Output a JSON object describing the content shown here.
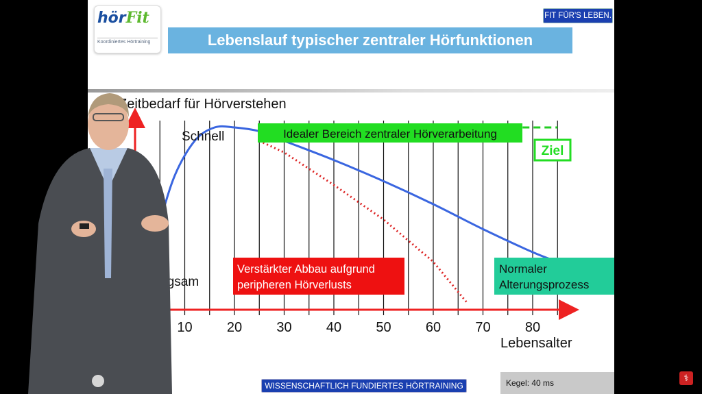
{
  "header": {
    "logo_main": "hör",
    "logo_fit": "Fit",
    "logo_sub": "Koordiniertes Hörtraining",
    "title": "Lebenslauf typischer zentraler Hörfunktionen",
    "badge": "FIT FÜR'S LEBEN."
  },
  "footer": {
    "badge": "WISSENSCHAFTLICH FUNDIERTES HÖRTRAINING",
    "kegel": "Kegel: 40 ms"
  },
  "chart_data": {
    "type": "line",
    "ylabel": "Zeitbedarf für Hörverstehen",
    "xlabel": "Lebensalter",
    "x_ticks": [
      10,
      20,
      30,
      40,
      50,
      60,
      70,
      80
    ],
    "xlim": [
      0,
      88
    ],
    "ylim": [
      0,
      100
    ],
    "y_top_label": "Schnell",
    "y_bottom_label": "Langsam",
    "series": [
      {
        "key": "normal",
        "color": "#3a66e0",
        "style": "solid",
        "x": [
          3,
          5,
          8,
          12,
          16,
          20,
          25,
          30,
          40,
          50,
          60,
          70,
          80,
          85
        ],
        "y": [
          20,
          45,
          70,
          88,
          95,
          95,
          93,
          88,
          78,
          67,
          55,
          42,
          30,
          25
        ]
      },
      {
        "key": "decline",
        "color": "#dd2222",
        "style": "dotted",
        "x": [
          25,
          30,
          40,
          50,
          60,
          67
        ],
        "y": [
          88,
          82,
          65,
          47,
          25,
          3
        ]
      },
      {
        "key": "ideal",
        "color": "#22cc22",
        "style": "dashed",
        "x": [
          25,
          85
        ],
        "y": [
          95,
          95
        ]
      }
    ],
    "annotations": {
      "ideal": "Idealer Bereich zentraler Hörverarbeitung",
      "ziel": "Ziel",
      "decline": [
        "Verstärkter Abbau aufgrund",
        "peripheren Hörverlusts"
      ],
      "normal": [
        "Normaler",
        "Alterungsprozess"
      ]
    },
    "colors": {
      "axis": "#ee2222",
      "grid": "#111111",
      "ideal_box": "#22dd22",
      "decline_box": "#ee1111",
      "normal_box": "#22cc99"
    }
  }
}
